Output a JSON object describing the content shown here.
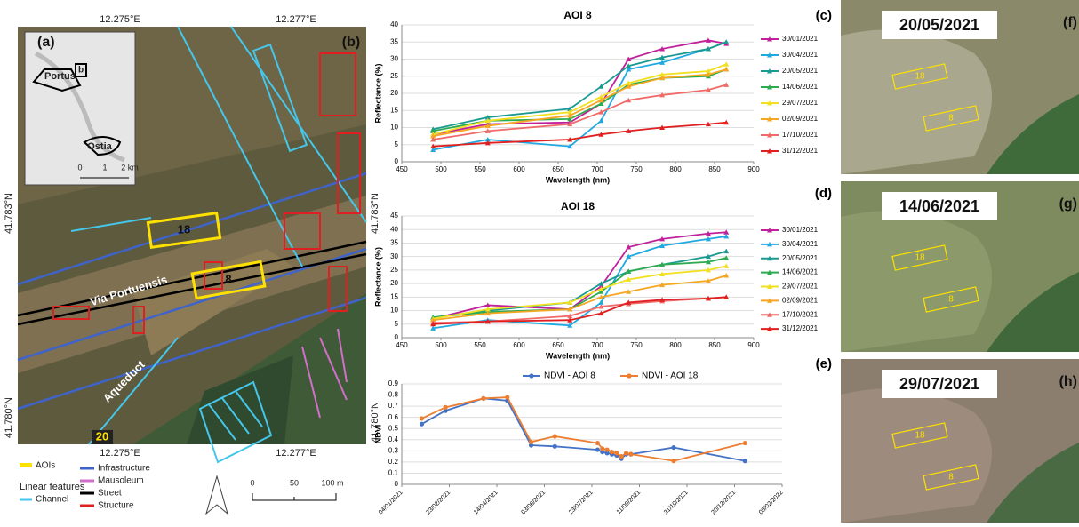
{
  "chart_data": [
    {
      "type": "line",
      "panel_label": "(c)",
      "title": "AOI 8",
      "x_label": "Wavelength (nm)",
      "y_label": "Reflectance (%)",
      "marker": "triangle",
      "legend": "right",
      "grid": true,
      "x": [
        490,
        560,
        665,
        705,
        740,
        783,
        842,
        865
      ],
      "xlim": [
        450,
        900
      ],
      "xticks": [
        450,
        500,
        550,
        600,
        650,
        700,
        750,
        800,
        850,
        900
      ],
      "ylim": [
        0,
        40
      ],
      "yticks": [
        0,
        5,
        10,
        15,
        20,
        25,
        30,
        35,
        40
      ],
      "series": [
        {
          "name": "30/01/2021",
          "color": "#c0209a",
          "values": [
            8,
            11,
            11.5,
            17,
            30,
            33,
            35.5,
            34.5
          ]
        },
        {
          "name": "30/04/2021",
          "color": "#20a8e0",
          "values": [
            3.5,
            6.5,
            4.5,
            12,
            27,
            29,
            33,
            35
          ]
        },
        {
          "name": "20/05/2021",
          "color": "#1a9a90",
          "values": [
            9.5,
            13,
            15.5,
            22,
            28,
            30.5,
            33,
            35
          ]
        },
        {
          "name": "14/06/2021",
          "color": "#2eaa50",
          "values": [
            9,
            12,
            12.5,
            17,
            22.5,
            24.5,
            25,
            27
          ]
        },
        {
          "name": "29/07/2021",
          "color": "#f0e020",
          "values": [
            8,
            12,
            14.5,
            19,
            23,
            25.5,
            26.5,
            28.5
          ]
        },
        {
          "name": "02/09/2021",
          "color": "#f5a623",
          "values": [
            7.5,
            10.5,
            13.5,
            18,
            22,
            24.5,
            25.5,
            27
          ]
        },
        {
          "name": "17/10/2021",
          "color": "#f06a6a",
          "values": [
            6.5,
            9,
            11,
            14.5,
            18,
            19.5,
            21,
            22.5
          ]
        },
        {
          "name": "31/12/2021",
          "color": "#e02020",
          "values": [
            4.5,
            5.5,
            6.5,
            8,
            9,
            10,
            11,
            11.5
          ]
        }
      ]
    },
    {
      "type": "line",
      "panel_label": "(d)",
      "title": "AOI 18",
      "x_label": "Wavelength (nm)",
      "y_label": "Reflectance (%)",
      "marker": "triangle",
      "legend": "right",
      "grid": true,
      "x": [
        490,
        560,
        665,
        705,
        740,
        783,
        842,
        865
      ],
      "xlim": [
        450,
        900
      ],
      "xticks": [
        450,
        500,
        550,
        600,
        650,
        700,
        750,
        800,
        850,
        900
      ],
      "ylim": [
        0,
        45
      ],
      "yticks": [
        0,
        5,
        10,
        15,
        20,
        25,
        30,
        35,
        40,
        45
      ],
      "series": [
        {
          "name": "30/01/2021",
          "color": "#c0209a",
          "values": [
            7,
            12,
            10.5,
            19,
            33.5,
            36.5,
            38.5,
            39
          ]
        },
        {
          "name": "30/04/2021",
          "color": "#20a8e0",
          "values": [
            3.5,
            6.5,
            4.5,
            13,
            30,
            34,
            36.5,
            37.5
          ]
        },
        {
          "name": "20/05/2021",
          "color": "#1a9a90",
          "values": [
            7.5,
            10,
            13,
            20,
            24.5,
            27,
            30,
            32
          ]
        },
        {
          "name": "14/06/2021",
          "color": "#2eaa50",
          "values": [
            7.5,
            9.5,
            10.5,
            17,
            24.5,
            27,
            28,
            29.5
          ]
        },
        {
          "name": "29/07/2021",
          "color": "#f0e020",
          "values": [
            7,
            10.5,
            13,
            18,
            21.5,
            23.5,
            25,
            26.5
          ]
        },
        {
          "name": "02/09/2021",
          "color": "#f5a623",
          "values": [
            6.5,
            9,
            10.5,
            15,
            17,
            19.5,
            21,
            23
          ]
        },
        {
          "name": "17/10/2021",
          "color": "#f06a6a",
          "values": [
            5.5,
            6,
            8,
            11.5,
            12.5,
            13.5,
            14.5,
            15
          ]
        },
        {
          "name": "31/12/2021",
          "color": "#e02020",
          "values": [
            5,
            6,
            6.5,
            9,
            13,
            14,
            14.5,
            15
          ]
        }
      ]
    },
    {
      "type": "line",
      "panel_label": "(e)",
      "y_label": "NDVI",
      "marker": "circle",
      "legend": "top",
      "grid": true,
      "x": [
        "25/01/2021",
        "19/02/2021",
        "31/03/2021",
        "25/04/2021",
        "20/05/2021",
        "14/06/2021",
        "29/07/2021",
        "03/08/2021",
        "08/08/2021",
        "13/08/2021",
        "18/08/2021",
        "23/08/2021",
        "28/08/2021",
        "02/09/2021",
        "17/10/2021",
        "31/12/2021"
      ],
      "xlim": [
        "04/01/2021",
        "08/02/2022"
      ],
      "xticks": [
        "04/01/2021",
        "23/02/2021",
        "14/04/2021",
        "03/06/2021",
        "23/07/2021",
        "11/09/2021",
        "31/10/2021",
        "20/12/2021",
        "08/02/2022"
      ],
      "ylim": [
        0,
        0.9
      ],
      "yticks": [
        0,
        0.1,
        0.2,
        0.3,
        0.4,
        0.5,
        0.6,
        0.7,
        0.8,
        0.9
      ],
      "series": [
        {
          "name": "NDVI - AOI 8",
          "color": "#4472c4",
          "values": [
            0.54,
            0.66,
            0.77,
            0.75,
            0.35,
            0.34,
            0.31,
            0.29,
            0.28,
            0.27,
            0.26,
            0.23,
            0.27,
            0.27,
            0.33,
            0.21
          ]
        },
        {
          "name": "NDVI - AOI 18",
          "color": "#ed7d31",
          "values": [
            0.59,
            0.69,
            0.77,
            0.78,
            0.38,
            0.43,
            0.37,
            0.32,
            0.31,
            0.29,
            0.28,
            0.25,
            0.28,
            0.27,
            0.21,
            0.37
          ]
        }
      ]
    }
  ],
  "map": {
    "panel_labels": [
      "(a)",
      "(b)"
    ],
    "coords_top": [
      "12.275°E",
      "12.277°E"
    ],
    "coords_bottom": [
      "12.275°E",
      "12.277°E"
    ],
    "coords_left": [
      "41.783°N",
      "41.780°N"
    ],
    "coords_right": [
      "41.783°N",
      "41.780°N"
    ],
    "places": [
      "Portus",
      "b",
      "Ostia"
    ],
    "inset_scale": [
      "0",
      "1",
      "2 km"
    ],
    "aoi_labels": [
      "18",
      "8",
      "20"
    ],
    "features": [
      "Via Portuensis",
      "Aqueduct"
    ],
    "legend": [
      "AOIs",
      "Infrastructure",
      "Linear features",
      "Mausoleum",
      "Channel",
      "Street",
      "Structure"
    ],
    "scale": [
      "0",
      "50",
      "100 m"
    ]
  },
  "images": [
    {
      "date": "20/05/2021",
      "label": "(f)",
      "aois": [
        "18",
        "8"
      ]
    },
    {
      "date": "14/06/2021",
      "label": "(g)",
      "aois": [
        "18",
        "8"
      ]
    },
    {
      "date": "29/07/2021",
      "label": "(h)",
      "aois": [
        "18",
        "8"
      ]
    }
  ]
}
